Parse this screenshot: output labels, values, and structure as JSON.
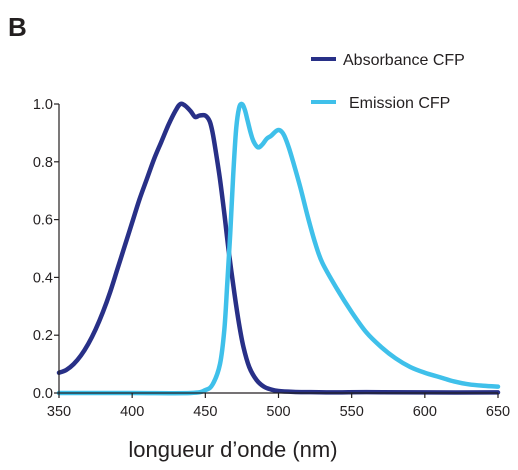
{
  "panel_label": "B",
  "chart_data": {
    "type": "line",
    "title": "",
    "xlabel": "longueur d’onde (nm)",
    "ylabel": "",
    "xlim": [
      350,
      650
    ],
    "ylim": [
      0,
      1.0
    ],
    "x_ticks": [
      "350",
      "400",
      "450",
      "500",
      "550",
      "600",
      "650"
    ],
    "y_ticks": [
      "0.0",
      "0.2",
      "0.4",
      "0.6",
      "0.8",
      "1.0"
    ],
    "grid": false,
    "legend_position": "top-right",
    "series": [
      {
        "name": "Absorbance CFP",
        "color": "#283087",
        "x": [
          350,
          355,
          360,
          365,
          370,
          375,
          380,
          385,
          390,
          395,
          400,
          405,
          410,
          415,
          420,
          425,
          430,
          433,
          436,
          440,
          443,
          446,
          450,
          453,
          455,
          457,
          460,
          463,
          466,
          470,
          473,
          476,
          480,
          485,
          490,
          495,
          500,
          510,
          520,
          540,
          560,
          600,
          650
        ],
        "values": [
          0.07,
          0.08,
          0.1,
          0.13,
          0.17,
          0.22,
          0.28,
          0.35,
          0.43,
          0.51,
          0.59,
          0.67,
          0.74,
          0.81,
          0.87,
          0.93,
          0.98,
          1.0,
          0.995,
          0.975,
          0.955,
          0.96,
          0.96,
          0.94,
          0.9,
          0.84,
          0.74,
          0.62,
          0.49,
          0.34,
          0.24,
          0.16,
          0.09,
          0.045,
          0.022,
          0.012,
          0.007,
          0.004,
          0.003,
          0.002,
          0.003,
          0.002,
          0.002
        ]
      },
      {
        "name": "Emission CFP",
        "color": "#3fc0ea",
        "x": [
          350,
          400,
          440,
          450,
          455,
          460,
          463,
          465,
          467,
          469,
          471,
          473,
          475,
          477,
          479,
          481,
          483,
          486,
          489,
          492,
          495,
          498,
          500,
          502,
          504,
          507,
          510,
          515,
          520,
          525,
          530,
          540,
          550,
          560,
          570,
          580,
          590,
          600,
          610,
          620,
          630,
          640,
          650
        ],
        "values": [
          0.0,
          0.0,
          0.0,
          0.01,
          0.03,
          0.1,
          0.22,
          0.38,
          0.55,
          0.75,
          0.91,
          0.985,
          1.0,
          0.98,
          0.94,
          0.9,
          0.87,
          0.85,
          0.86,
          0.88,
          0.89,
          0.905,
          0.91,
          0.905,
          0.89,
          0.85,
          0.8,
          0.71,
          0.61,
          0.52,
          0.45,
          0.36,
          0.28,
          0.21,
          0.16,
          0.12,
          0.09,
          0.07,
          0.055,
          0.04,
          0.03,
          0.025,
          0.022
        ]
      }
    ]
  }
}
